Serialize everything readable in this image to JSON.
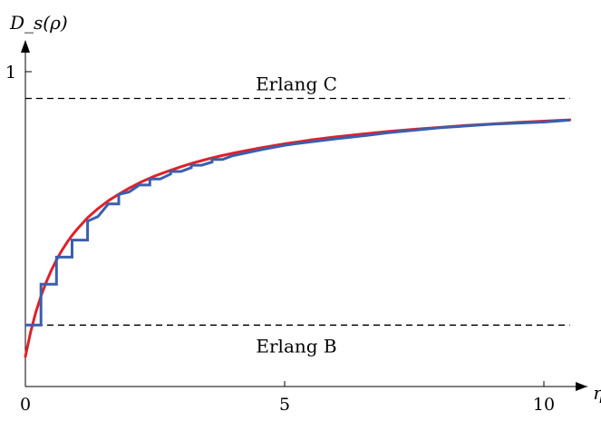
{
  "chart_data": {
    "type": "line",
    "ylabel": "D_s(ρ)",
    "xlabel": "η",
    "xlim": [
      0,
      10.5
    ],
    "ylim": [
      0,
      1.0
    ],
    "x_ticks": [
      "0",
      "5",
      "10"
    ],
    "y_ticks": [
      "1"
    ],
    "grid": false,
    "legend": "none",
    "reference_lines": [
      {
        "label": "Erlang C",
        "y": 0.915,
        "style": "dashed",
        "color": "#000000"
      },
      {
        "label": "Erlang B",
        "y": 0.195,
        "style": "dashed",
        "color": "#000000"
      }
    ],
    "series": [
      {
        "color": "#e0202a",
        "style": "smooth",
        "x": [
          0,
          0.1,
          0.2,
          0.3,
          0.4,
          0.5,
          0.6,
          0.7,
          0.8,
          0.9,
          1.0,
          1.2,
          1.4,
          1.6,
          1.8,
          2.0,
          2.25,
          2.5,
          2.75,
          3.0,
          3.25,
          3.5,
          3.75,
          4.0,
          4.5,
          5.0,
          5.5,
          6.0,
          6.5,
          7.0,
          7.5,
          8.0,
          8.5,
          9.0,
          9.5,
          10.0,
          10.5
        ],
        "y": [
          0.095,
          0.172,
          0.235,
          0.287,
          0.331,
          0.369,
          0.402,
          0.431,
          0.457,
          0.48,
          0.5,
          0.536,
          0.565,
          0.59,
          0.611,
          0.63,
          0.651,
          0.669,
          0.684,
          0.698,
          0.711,
          0.722,
          0.732,
          0.741,
          0.757,
          0.771,
          0.783,
          0.793,
          0.802,
          0.81,
          0.817,
          0.823,
          0.829,
          0.834,
          0.839,
          0.843,
          0.847
        ]
      },
      {
        "color": "#3a5fad",
        "style": "step",
        "x": [
          0,
          0.3,
          0.3,
          0.6,
          0.6,
          0.9,
          0.9,
          1.2,
          1.2,
          1.4,
          1.6,
          1.8,
          1.8,
          2.0,
          2.2,
          2.4,
          2.4,
          2.6,
          2.8,
          2.8,
          3.0,
          3.2,
          3.2,
          3.4,
          3.6,
          3.6,
          3.8,
          4.0,
          4.4,
          4.6,
          5.0,
          5.2,
          6.0,
          6.6,
          7.0,
          8.0,
          9.0,
          10.0,
          10.5
        ],
        "y": [
          0.195,
          0.195,
          0.325,
          0.325,
          0.411,
          0.411,
          0.465,
          0.465,
          0.525,
          0.54,
          0.58,
          0.58,
          0.61,
          0.618,
          0.64,
          0.64,
          0.659,
          0.659,
          0.675,
          0.683,
          0.683,
          0.695,
          0.703,
          0.703,
          0.713,
          0.721,
          0.721,
          0.733,
          0.747,
          0.754,
          0.766,
          0.771,
          0.787,
          0.798,
          0.806,
          0.822,
          0.833,
          0.84,
          0.846
        ]
      }
    ]
  }
}
